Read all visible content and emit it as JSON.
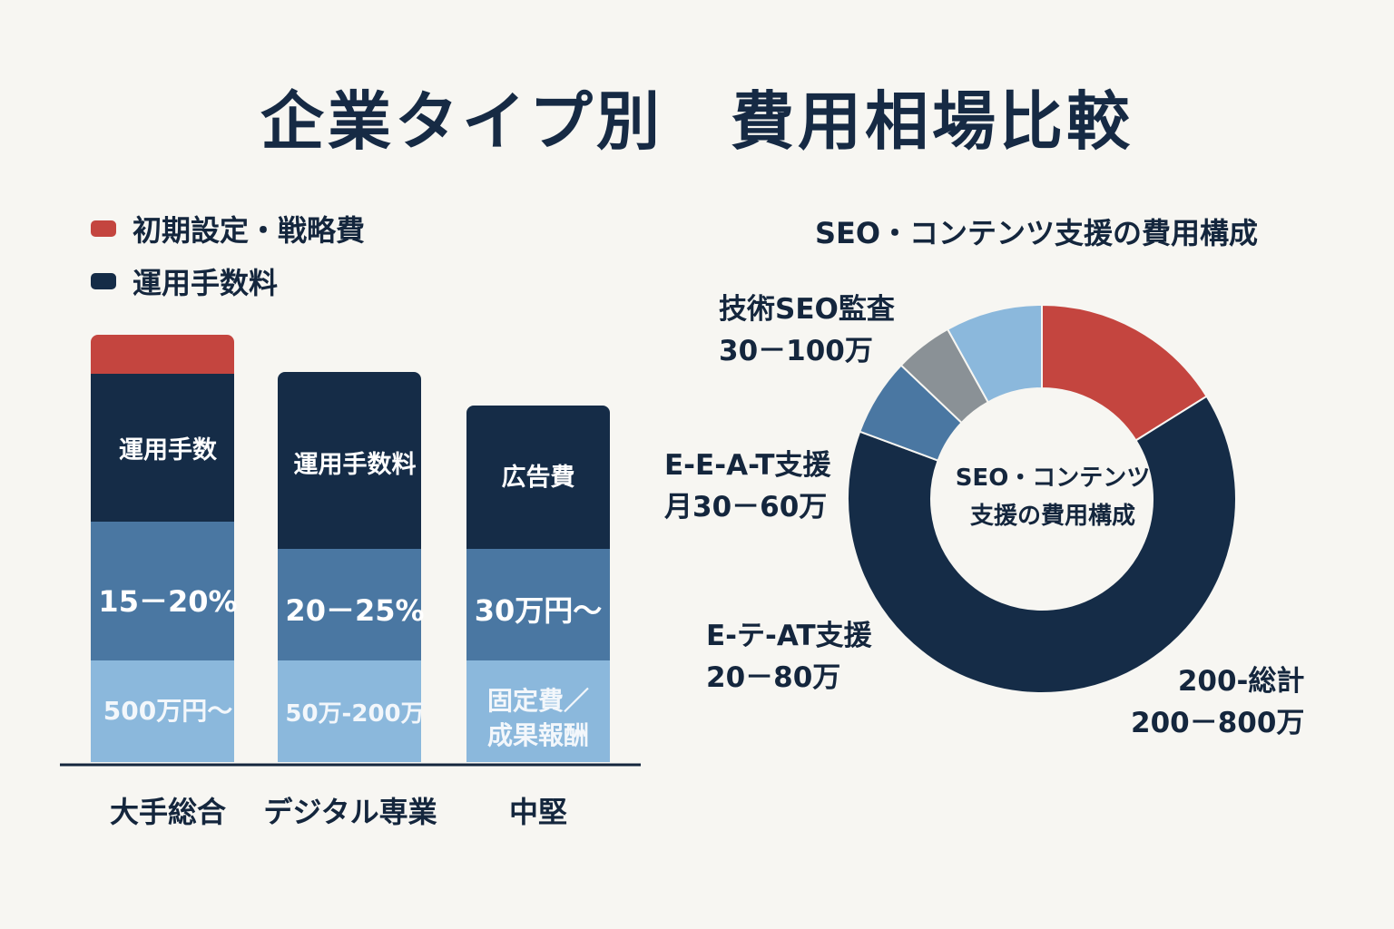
{
  "title": "企業タイプ別　費用相場比較",
  "legend": [
    {
      "label": "初期設定・戦略費",
      "color": "#c4453f"
    },
    {
      "label": "運用手数料",
      "color": "#152c47"
    }
  ],
  "chart_data": [
    {
      "type": "bar",
      "stacked": true,
      "categories": [
        "大手総合",
        "デジタル専業",
        "中堅"
      ],
      "series": [
        {
          "name": "初期設定・戦略費",
          "color": "#c4453f",
          "values": [
            0.43,
            0,
            0
          ]
        },
        {
          "name": "運用手数料",
          "color": "#152c47",
          "values": [
            1.63,
            1.95,
            1.58
          ]
        },
        {
          "color": "#4a77a2",
          "values": [
            1.53,
            1.23,
            1.23
          ]
        },
        {
          "color": "#8bb8dc",
          "values": [
            1.12,
            1.12,
            1.12
          ]
        }
      ],
      "segment_labels": [
        [
          "運用手数",
          "15－20%",
          "500万円～"
        ],
        [
          "運用手数料",
          "20－25%",
          "50万-200万"
        ],
        [
          "広告費",
          "30万円～",
          "固定費／\n成果報酬"
        ]
      ],
      "legend": "top-left"
    },
    {
      "type": "pie",
      "donut": true,
      "title": "SEO・コンテンツ支援の費用構成",
      "center_label": [
        "SEO・コンテンツ",
        "支援の費用構成"
      ],
      "slices": [
        {
          "label": "200-総計",
          "value": 200,
          "color": "#c4453f"
        },
        {
          "label": "200-総計",
          "value": 800,
          "color": "#152c47"
        },
        {
          "label": "E-テ-AT支援",
          "value": 80,
          "color": "#4a77a2"
        },
        {
          "label": "E-E-A-T支援",
          "value": 60,
          "color": "#8a9196"
        },
        {
          "label": "技術SEO監査",
          "value": 100,
          "color": "#8bb8dc"
        }
      ]
    }
  ],
  "donut_labels": {
    "audit": {
      "name": "技術SEO監査",
      "range": "30－100万"
    },
    "eeat": {
      "name": "E-E-A-T支援",
      "range": "月30－60万"
    },
    "eat": {
      "name": "E-テ-AT支援",
      "range": "20－80万"
    },
    "total": {
      "name": "200-総計",
      "range": "200－800万"
    }
  }
}
